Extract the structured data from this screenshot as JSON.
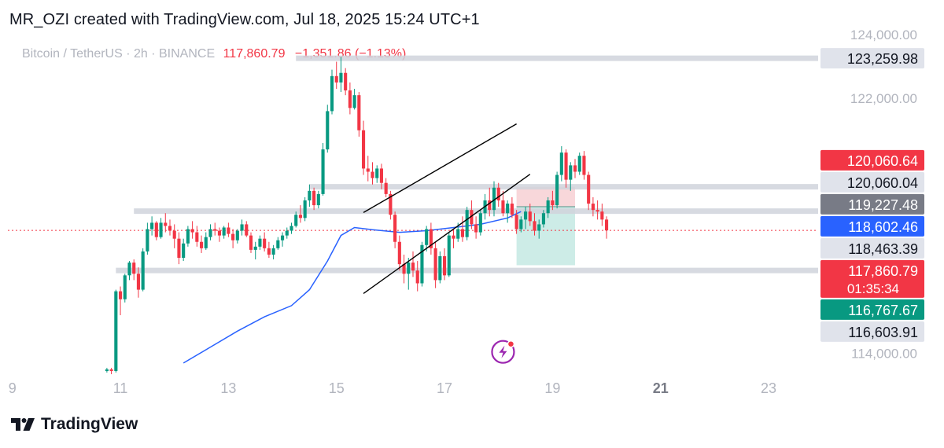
{
  "header": {
    "created_text": "MR_OZI created with TradingView.com, Jul 18, 2025 15:24 UTC+1"
  },
  "symbol": {
    "name": "Bitcoin / TetherUS · 2h · BINANCE",
    "last_price": "117,860.79",
    "change": "−1,351.86 (−1.13%)"
  },
  "footer": {
    "brand": "TradingView",
    "logo_icon": "tradingview-logo-icon"
  },
  "colors": {
    "up": "#089981",
    "down": "#f23645",
    "ma": "#2962ff",
    "level": "#d1d4dc",
    "channel": "#000000",
    "stop_zone": "#f8d7da",
    "target_zone": "#cdece7",
    "marker": "#9c27b0"
  },
  "chart_data": {
    "type": "candlestick",
    "title": "",
    "x_ticks": [
      "9",
      "11",
      "13",
      "15",
      "17",
      "19",
      "21",
      "23"
    ],
    "x_tick_dates": [
      "2025-07-09",
      "2025-07-11",
      "2025-07-13",
      "2025-07-15",
      "2025-07-17",
      "2025-07-19",
      "2025-07-21",
      "2025-07-23"
    ],
    "x_bold_tick": "21",
    "y_ticks": [
      114000,
      116000,
      118000,
      120000,
      122000,
      124000
    ],
    "y_tick_labels": [
      "114,000.00",
      "",
      "",
      "",
      "122,000.00",
      "124,000.00"
    ],
    "ylim": [
      113500,
      124100
    ],
    "xlim": [
      "2025-07-08T22:00",
      "2025-07-23T22:00"
    ],
    "price_labels": [
      {
        "value": 123259.98,
        "text": "123,259.98",
        "style": "level"
      },
      {
        "value": 120060.64,
        "text": "120,060.64",
        "style": "red"
      },
      {
        "value": 120060.04,
        "text": "120,060.04",
        "style": "level"
      },
      {
        "value": 119227.48,
        "text": "119,227.48",
        "style": "dark"
      },
      {
        "value": 118602.46,
        "text": "118,602.46",
        "style": "blue"
      },
      {
        "value": 118463.39,
        "text": "118,463.39",
        "style": "level"
      },
      {
        "value": 117860.79,
        "text": "117,860.79",
        "sub": "01:35:34",
        "style": "current"
      },
      {
        "value": 116767.67,
        "text": "116,767.67",
        "style": "green"
      },
      {
        "value": 116603.91,
        "text": "116,603.91",
        "style": "level"
      }
    ],
    "horizontal_levels": [
      {
        "value": 123259.98,
        "from": "2025-07-14T06:00"
      },
      {
        "value": 119227.48,
        "from": "2025-07-14T12:00"
      },
      {
        "value": 118463.39,
        "from": "2025-07-11T06:00"
      },
      {
        "value": 116603.91,
        "from": "2025-07-10T22:00"
      }
    ],
    "current_price": 117860.79,
    "channel": {
      "upper": [
        [
          "2025-07-15T12:00",
          118420
        ],
        [
          "2025-07-18T08:00",
          121200
        ]
      ],
      "lower": [
        [
          "2025-07-15T12:00",
          115880
        ],
        [
          "2025-07-18T14:00",
          119620
        ]
      ]
    },
    "position": {
      "from": "2025-07-18T08:00",
      "to": "2025-07-19T10:00",
      "stop": 119227.48,
      "entry": 118602.46,
      "target": 116767.67
    },
    "moving_average": [
      [
        "2025-07-12T04:00",
        113700
      ],
      [
        "2025-07-12T16:00",
        114200
      ],
      [
        "2025-07-13T04:00",
        114700
      ],
      [
        "2025-07-13T16:00",
        115150
      ],
      [
        "2025-07-14T04:00",
        115500
      ],
      [
        "2025-07-14T12:00",
        116000
      ],
      [
        "2025-07-14T20:00",
        116900
      ],
      [
        "2025-07-15T02:00",
        117700
      ],
      [
        "2025-07-15T08:00",
        117950
      ],
      [
        "2025-07-15T16:00",
        117880
      ],
      [
        "2025-07-16T04:00",
        117800
      ],
      [
        "2025-07-16T16:00",
        117850
      ],
      [
        "2025-07-17T04:00",
        117950
      ],
      [
        "2025-07-17T16:00",
        118050
      ],
      [
        "2025-07-18T04:00",
        118250
      ],
      [
        "2025-07-18T10:00",
        118450
      ]
    ],
    "candles_start": "2025-07-10T18:00",
    "candle_hours": 2,
    "candles": [
      [
        113450,
        113550,
        113400,
        113500
      ],
      [
        113500,
        113550,
        113350,
        113450
      ],
      [
        113450,
        116000,
        113400,
        115950
      ],
      [
        115950,
        116100,
        115200,
        115700
      ],
      [
        115700,
        116500,
        115600,
        116450
      ],
      [
        116450,
        116900,
        116300,
        116850
      ],
      [
        116850,
        116950,
        116300,
        116500
      ],
      [
        116500,
        116700,
        115750,
        116000
      ],
      [
        116000,
        117300,
        115950,
        117200
      ],
      [
        117200,
        118100,
        117100,
        117900
      ],
      [
        117900,
        118300,
        117700,
        118100
      ],
      [
        118100,
        118150,
        117550,
        117650
      ],
      [
        117650,
        118250,
        117600,
        118100
      ],
      [
        118100,
        118400,
        117800,
        118000
      ],
      [
        118000,
        118200,
        117700,
        117850
      ],
      [
        117850,
        118050,
        117300,
        117600
      ],
      [
        117600,
        117800,
        116800,
        117000
      ],
      [
        117000,
        117600,
        116900,
        117450
      ],
      [
        117450,
        118000,
        117350,
        117900
      ],
      [
        117900,
        118150,
        117600,
        117800
      ],
      [
        117800,
        118000,
        117350,
        117500
      ],
      [
        117500,
        117700,
        117150,
        117300
      ],
      [
        117300,
        117800,
        117250,
        117650
      ],
      [
        117650,
        118050,
        117550,
        117900
      ],
      [
        117900,
        118100,
        117700,
        117850
      ],
      [
        117850,
        117950,
        117500,
        117700
      ],
      [
        117700,
        118000,
        117600,
        117950
      ],
      [
        117950,
        118100,
        117650,
        117750
      ],
      [
        117750,
        117900,
        117300,
        117550
      ],
      [
        117550,
        117900,
        117450,
        117850
      ],
      [
        117850,
        118200,
        117700,
        118050
      ],
      [
        118050,
        118150,
        117650,
        117700
      ],
      [
        117700,
        117800,
        117150,
        117250
      ],
      [
        117250,
        117500,
        116950,
        117350
      ],
      [
        117350,
        117700,
        117250,
        117600
      ],
      [
        117600,
        117800,
        117200,
        117300
      ],
      [
        117300,
        117500,
        117000,
        117100
      ],
      [
        117100,
        117400,
        116950,
        117300
      ],
      [
        117300,
        117650,
        117250,
        117550
      ],
      [
        117550,
        117800,
        117350,
        117700
      ],
      [
        117700,
        117950,
        117600,
        117850
      ],
      [
        117850,
        118100,
        117750,
        118000
      ],
      [
        118000,
        118450,
        117950,
        118350
      ],
      [
        118350,
        118650,
        118100,
        118250
      ],
      [
        118250,
        118900,
        118150,
        118800
      ],
      [
        118800,
        119300,
        118600,
        119100
      ],
      [
        119100,
        119200,
        118500,
        118650
      ],
      [
        118650,
        119100,
        118550,
        119000
      ],
      [
        119000,
        120600,
        118950,
        120400
      ],
      [
        120400,
        121800,
        120300,
        121600
      ],
      [
        121600,
        122900,
        121500,
        122700
      ],
      [
        122700,
        123150,
        122300,
        122500
      ],
      [
        122500,
        123300,
        122200,
        122800
      ],
      [
        122800,
        122950,
        122100,
        122250
      ],
      [
        122250,
        122500,
        121500,
        121700
      ],
      [
        121700,
        122300,
        121650,
        122100
      ],
      [
        122100,
        122200,
        120800,
        121000
      ],
      [
        121000,
        121300,
        119600,
        119800
      ],
      [
        119800,
        120200,
        119400,
        119700
      ],
      [
        119700,
        120000,
        119300,
        119500
      ],
      [
        119500,
        119900,
        119350,
        119800
      ],
      [
        119800,
        119950,
        119150,
        119350
      ],
      [
        119350,
        119500,
        118900,
        119000
      ],
      [
        119000,
        119100,
        118200,
        118350
      ],
      [
        118350,
        118450,
        117300,
        117500
      ],
      [
        117500,
        117700,
        116600,
        116800
      ],
      [
        116800,
        117100,
        116200,
        116500
      ],
      [
        116500,
        117000,
        116000,
        116850
      ],
      [
        116850,
        117200,
        116400,
        116600
      ],
      [
        116600,
        116900,
        115950,
        116200
      ],
      [
        116200,
        117500,
        116100,
        117400
      ],
      [
        117400,
        118000,
        117200,
        117900
      ],
      [
        117900,
        118100,
        117100,
        117300
      ],
      [
        117300,
        117500,
        116050,
        116300
      ],
      [
        116300,
        117200,
        116200,
        117050
      ],
      [
        117050,
        117300,
        116300,
        116450
      ],
      [
        116450,
        117800,
        116400,
        117700
      ],
      [
        117700,
        117900,
        117300,
        117600
      ],
      [
        117600,
        118100,
        117500,
        117900
      ],
      [
        117900,
        118300,
        117500,
        117650
      ],
      [
        117650,
        118600,
        117550,
        118500
      ],
      [
        118500,
        118800,
        117900,
        118050
      ],
      [
        118050,
        118300,
        117600,
        117800
      ],
      [
        117800,
        118500,
        117700,
        118400
      ],
      [
        118400,
        119000,
        118200,
        118800
      ],
      [
        118800,
        119200,
        118300,
        118500
      ],
      [
        118500,
        119400,
        118300,
        119200
      ],
      [
        119200,
        119350,
        118600,
        118800
      ],
      [
        118800,
        119100,
        118300,
        118400
      ],
      [
        118400,
        118800,
        118100,
        118700
      ],
      [
        118700,
        118900,
        118250,
        118350
      ],
      [
        118350,
        118500,
        117750,
        117900
      ],
      [
        117900,
        118300,
        117800,
        118200
      ],
      [
        118200,
        118600,
        117900,
        118450
      ],
      [
        118450,
        118700,
        118000,
        118150
      ],
      [
        118150,
        118400,
        117700,
        117850
      ],
      [
        117850,
        118200,
        117600,
        118050
      ],
      [
        118050,
        118500,
        117950,
        118400
      ],
      [
        118400,
        118900,
        118250,
        118800
      ],
      [
        118800,
        119100,
        118500,
        118650
      ],
      [
        118650,
        119700,
        118550,
        119600
      ],
      [
        119600,
        120500,
        119400,
        120300
      ],
      [
        120300,
        120400,
        119200,
        119450
      ],
      [
        119450,
        120000,
        119100,
        119900
      ],
      [
        119900,
        120100,
        119500,
        119700
      ],
      [
        119700,
        120300,
        119600,
        120200
      ],
      [
        120200,
        120350,
        119450,
        119600
      ],
      [
        119600,
        119700,
        118500,
        118700
      ],
      [
        118700,
        118900,
        118300,
        118500
      ],
      [
        118500,
        118800,
        118200,
        118450
      ],
      [
        118450,
        118700,
        118000,
        118200
      ],
      [
        118200,
        118300,
        117600,
        117860
      ]
    ],
    "annotation_icon": {
      "date": "2025-07-18T02:00",
      "value": 114050,
      "name": "lightning-bolt-icon"
    }
  }
}
